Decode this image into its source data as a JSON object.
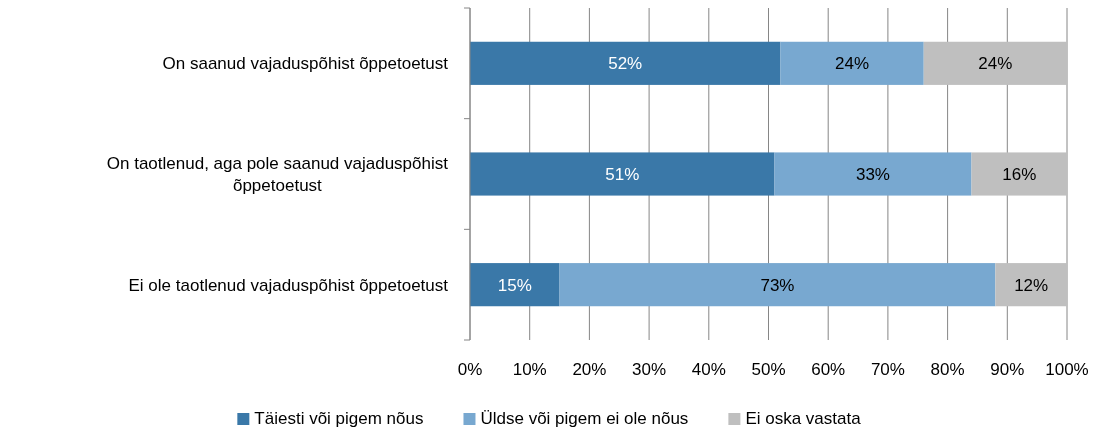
{
  "chart_data": {
    "type": "bar",
    "orientation": "horizontal",
    "stacked": true,
    "categories": [
      "On saanud vajaduspõhist õppetoetust",
      "On taotlenud, aga pole saanud vajaduspõhist õppetoetust",
      "Ei ole taotlenud vajaduspõhist õppetoetust"
    ],
    "series": [
      {
        "name": "Täiesti või pigem nõus",
        "color": "#3a78a8",
        "values": [
          52,
          51,
          15
        ],
        "value_labels": [
          "52%",
          "51%",
          "15%"
        ]
      },
      {
        "name": "Üldse või pigem ei ole nõus",
        "color": "#78a8d0",
        "values": [
          24,
          33,
          73
        ],
        "value_labels": [
          "24%",
          "33%",
          "73%"
        ]
      },
      {
        "name": "Ei oska vastata",
        "color": "#bfbfbf",
        "values": [
          24,
          16,
          12
        ],
        "value_labels": [
          "24%",
          "16%",
          "12%"
        ]
      }
    ],
    "xlim": [
      0,
      100
    ],
    "xticks": [
      {
        "value": 0,
        "label": "0%"
      },
      {
        "value": 10,
        "label": "10%"
      },
      {
        "value": 20,
        "label": "20%"
      },
      {
        "value": 30,
        "label": "30%"
      },
      {
        "value": 40,
        "label": "40%"
      },
      {
        "value": 50,
        "label": "50%"
      },
      {
        "value": 60,
        "label": "60%"
      },
      {
        "value": 70,
        "label": "70%"
      },
      {
        "value": 80,
        "label": "80%"
      },
      {
        "value": 90,
        "label": "90%"
      },
      {
        "value": 100,
        "label": "100%"
      }
    ],
    "grid": "x",
    "legend": "bottom"
  }
}
